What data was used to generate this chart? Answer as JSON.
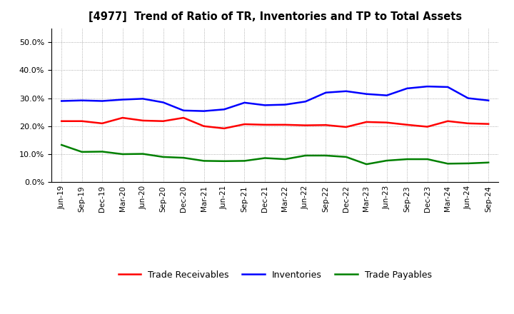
{
  "title": "[4977]  Trend of Ratio of TR, Inventories and TP to Total Assets",
  "x_labels": [
    "Jun-19",
    "Sep-19",
    "Dec-19",
    "Mar-20",
    "Jun-20",
    "Sep-20",
    "Dec-20",
    "Mar-21",
    "Jun-21",
    "Sep-21",
    "Dec-21",
    "Mar-22",
    "Jun-22",
    "Sep-22",
    "Dec-22",
    "Mar-23",
    "Jun-23",
    "Sep-23",
    "Dec-23",
    "Mar-24",
    "Jun-24",
    "Sep-24"
  ],
  "trade_receivables": [
    0.218,
    0.218,
    0.21,
    0.23,
    0.22,
    0.218,
    0.23,
    0.2,
    0.192,
    0.207,
    0.205,
    0.205,
    0.203,
    0.204,
    0.197,
    0.215,
    0.213,
    0.205,
    0.198,
    0.218,
    0.21,
    0.208
  ],
  "inventories": [
    0.29,
    0.292,
    0.29,
    0.295,
    0.298,
    0.285,
    0.256,
    0.254,
    0.26,
    0.284,
    0.275,
    0.277,
    0.288,
    0.32,
    0.325,
    0.315,
    0.31,
    0.335,
    0.342,
    0.34,
    0.3,
    0.292
  ],
  "trade_payables": [
    0.133,
    0.108,
    0.109,
    0.1,
    0.101,
    0.09,
    0.087,
    0.076,
    0.075,
    0.076,
    0.086,
    0.082,
    0.095,
    0.095,
    0.09,
    0.064,
    0.077,
    0.082,
    0.082,
    0.066,
    0.067,
    0.07
  ],
  "ylim": [
    0.0,
    0.55
  ],
  "yticks": [
    0.0,
    0.1,
    0.2,
    0.3,
    0.4,
    0.5
  ],
  "tr_color": "#ff0000",
  "inv_color": "#0000ff",
  "tp_color": "#008000",
  "legend_labels": [
    "Trade Receivables",
    "Inventories",
    "Trade Payables"
  ],
  "bg_color": "#ffffff",
  "plot_bg_color": "#ffffff",
  "grid_color": "#999999",
  "line_width": 1.8
}
